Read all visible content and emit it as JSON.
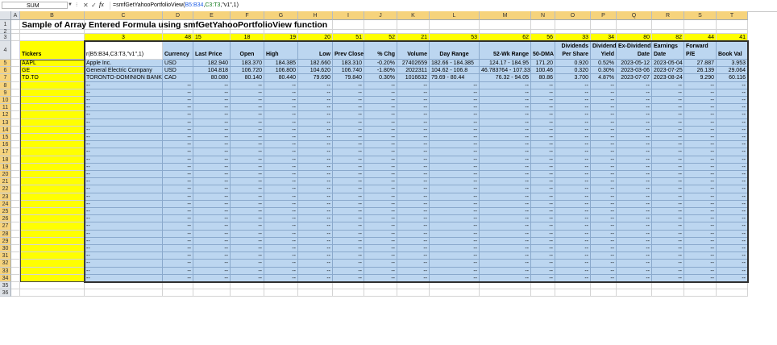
{
  "formula_bar": {
    "name_box": "SUM",
    "cancel_icon": "✕",
    "enter_icon": "✓",
    "fx": "fx",
    "formula_prefix": "=smfGetYahooPortfolioView(",
    "formula_arg1": "B5:B34",
    "formula_sep1": ",",
    "formula_arg2": "C3:T3",
    "formula_suffix": ",\"v1\",1)"
  },
  "columns": [
    "A",
    "B",
    "C",
    "D",
    "E",
    "F",
    "G",
    "H",
    "I",
    "J",
    "K",
    "L",
    "M",
    "N",
    "O",
    "P",
    "Q",
    "R",
    "S",
    "T"
  ],
  "rows": [
    "1",
    "2",
    "3",
    "4",
    "5",
    "6",
    "7",
    "8",
    "9",
    "10",
    "11",
    "12",
    "13",
    "14",
    "15",
    "16",
    "17",
    "18",
    "19",
    "20",
    "21",
    "22",
    "23",
    "24",
    "25",
    "26",
    "27",
    "28",
    "29",
    "30",
    "31",
    "32",
    "33",
    "34",
    "35",
    "36"
  ],
  "title": "Sample of Array Entered Formula using smfGetYahooPortfolioView function",
  "row3": [
    "3",
    "48",
    "15",
    "18",
    "19",
    "20",
    "51",
    "52",
    "21",
    "53",
    "62",
    "56",
    "33",
    "34",
    "80",
    "82",
    "44",
    "41"
  ],
  "headers": {
    "tickers": "Tickers",
    "formula_echo": "r(B5:B34,C3:T3,\"v1\",1)",
    "cols": [
      {
        "col": "D",
        "text": "Currency",
        "align": "l"
      },
      {
        "col": "E",
        "text": "Last Price",
        "align": "l"
      },
      {
        "col": "F",
        "text": "Open",
        "align": "c"
      },
      {
        "col": "G",
        "text": "High",
        "align": "l"
      },
      {
        "col": "H",
        "text": "Low",
        "align": "r"
      },
      {
        "col": "I",
        "text": "Prev Close",
        "align": "c"
      },
      {
        "col": "J",
        "text": "% Chg",
        "align": "r"
      },
      {
        "col": "K",
        "text": "Volume",
        "align": "r"
      },
      {
        "col": "L",
        "text": "Day Range",
        "align": "c"
      },
      {
        "col": "M",
        "text": "52-Wk Range",
        "align": "r"
      },
      {
        "col": "N",
        "text": "50-DMA",
        "align": "c"
      },
      {
        "col": "O",
        "text1": "Dividends",
        "text2": "Per Share",
        "align": "r"
      },
      {
        "col": "P",
        "text1": "Dividend",
        "text2": "Yield",
        "align": "r"
      },
      {
        "col": "Q",
        "text1": "Ex-Dividend",
        "text2": "Date",
        "align": "r"
      },
      {
        "col": "R",
        "text1": "Earnings",
        "text2": "Date",
        "align": "l"
      },
      {
        "col": "S",
        "text1": "Forward",
        "text2": "P/E",
        "align": "l"
      },
      {
        "col": "T",
        "text": "Book Val",
        "align": "l"
      }
    ]
  },
  "data_rows": [
    {
      "ticker": "AAPL",
      "values": [
        "Apple Inc.",
        "USD",
        "182.940",
        "183.370",
        "184.385",
        "182.660",
        "183.310",
        "-0.20%",
        "27402659",
        "182.66 - 184.385",
        "124.17 - 184.95",
        "171.20",
        "0.920",
        "0.52%",
        "2023-05-12",
        "2023-05-04",
        "27.887",
        "3.953"
      ]
    },
    {
      "ticker": "GE",
      "values": [
        "General Electric Company",
        "USD",
        "104.818",
        "106.720",
        "106.800",
        "104.620",
        "106.740",
        "-1.80%",
        "2022311",
        "104.62 - 106.8",
        "46.783764 - 107.33",
        "100.46",
        "0.320",
        "0.30%",
        "2023-03-06",
        "2023-07-25",
        "26.139",
        "29.064"
      ]
    },
    {
      "ticker": "TD.TO",
      "values": [
        "TORONTO-DOMINION BANK",
        "CAD",
        "80.080",
        "80.140",
        "80.440",
        "79.690",
        "79.840",
        "0.30%",
        "1016632",
        "79.69 - 80.44",
        "76.32 - 94.05",
        "80.86",
        "3.700",
        "4.87%",
        "2023-07-07",
        "2023-08-24",
        "9.290",
        "60.116"
      ]
    }
  ],
  "empty_marker": "--"
}
